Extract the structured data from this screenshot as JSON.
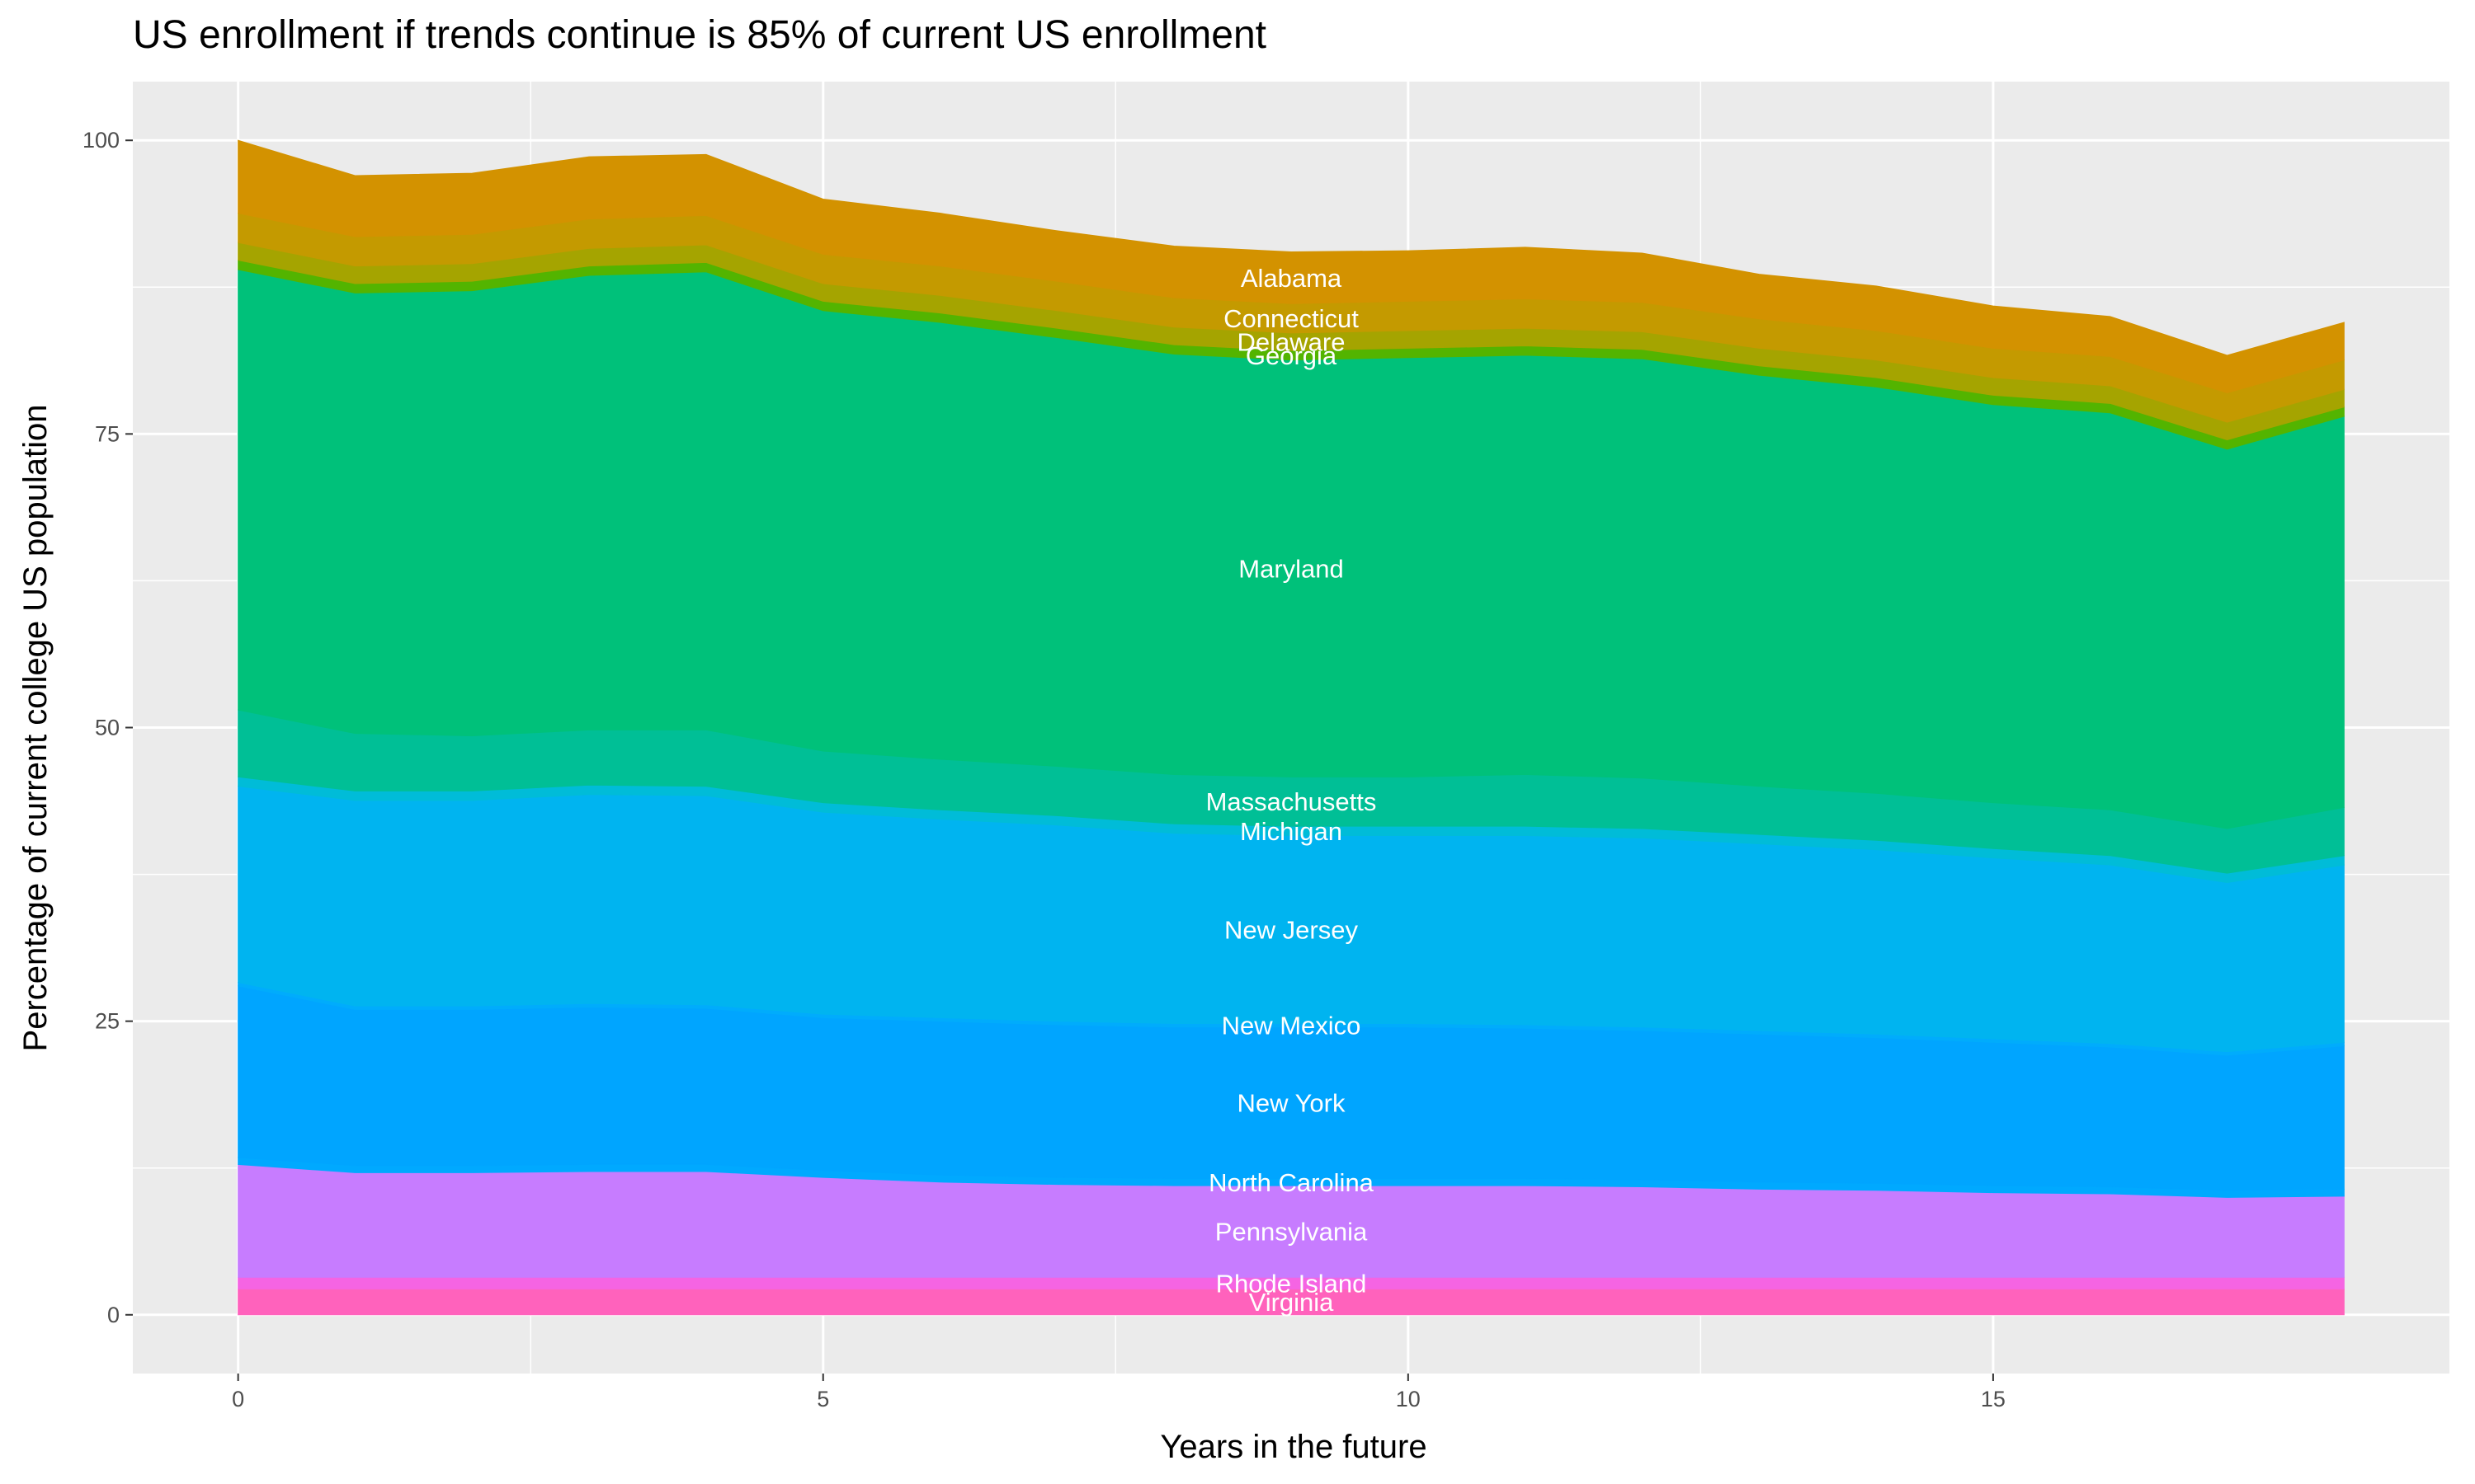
{
  "chart_data": {
    "type": "area",
    "stacked": true,
    "title": "US enrollment if trends continue is 85% of current US enrollment",
    "x_label": "Years in the future",
    "y_label": "Percentage of current college US population",
    "x": [
      0,
      1,
      2,
      3,
      4,
      5,
      6,
      7,
      8,
      9,
      10,
      11,
      12,
      13,
      14,
      15,
      16,
      17,
      18
    ],
    "xlim": [
      -0.9,
      18.9
    ],
    "xticks": [
      0,
      5,
      10,
      15
    ],
    "ylim": [
      -5,
      105
    ],
    "yticks": [
      0,
      25,
      50,
      75,
      100
    ],
    "grid": true,
    "series": [
      {
        "name": "Virginia",
        "color": "#FF62BC",
        "values": [
          2.2,
          2.2,
          2.2,
          2.2,
          2.2,
          2.2,
          2.2,
          2.2,
          2.2,
          2.2,
          2.2,
          2.2,
          2.2,
          2.2,
          2.2,
          2.2,
          2.2,
          2.2,
          2.2
        ]
      },
      {
        "name": "Rhode Island",
        "color": "#F564E3",
        "values": [
          1.0,
          1.0,
          1.0,
          1.0,
          1.0,
          1.0,
          1.0,
          1.0,
          1.0,
          1.0,
          1.0,
          1.0,
          1.0,
          1.0,
          1.0,
          1.0,
          1.0,
          1.0,
          1.0
        ]
      },
      {
        "name": "Pennsylvania",
        "color": "#C77CFF",
        "values": [
          9.6,
          8.9,
          8.9,
          9.0,
          9.0,
          8.5,
          8.1,
          7.9,
          7.8,
          7.8,
          7.8,
          7.8,
          7.7,
          7.5,
          7.4,
          7.2,
          7.1,
          6.8,
          6.9
        ]
      },
      {
        "name": "North Carolina",
        "color": "#00A9FF",
        "values": [
          0.6,
          0.6,
          0.6,
          0.6,
          0.6,
          0.6,
          0.6,
          0.6,
          0.6,
          0.6,
          0.6,
          0.6,
          0.6,
          0.6,
          0.6,
          0.6,
          0.6,
          0.6,
          0.6
        ]
      },
      {
        "name": "New York",
        "color": "#00A5FF",
        "values": [
          14.6,
          13.3,
          13.3,
          13.4,
          13.3,
          13.0,
          13.1,
          13.0,
          12.9,
          12.9,
          12.9,
          12.8,
          12.7,
          12.6,
          12.4,
          12.2,
          11.9,
          11.5,
          12.2
        ]
      },
      {
        "name": "New Mexico",
        "color": "#00ACFC",
        "values": [
          0.3,
          0.3,
          0.3,
          0.3,
          0.3,
          0.3,
          0.3,
          0.3,
          0.3,
          0.3,
          0.3,
          0.3,
          0.3,
          0.3,
          0.3,
          0.3,
          0.3,
          0.3,
          0.3
        ]
      },
      {
        "name": "New Jersey",
        "color": "#00B4F0",
        "values": [
          16.7,
          17.5,
          17.5,
          17.8,
          17.8,
          17.2,
          16.9,
          16.7,
          16.2,
          16.0,
          16.0,
          16.1,
          16.1,
          15.9,
          15.7,
          15.4,
          15.2,
          14.4,
          15.1
        ]
      },
      {
        "name": "Michigan",
        "color": "#00BCD8",
        "values": [
          0.8,
          0.8,
          0.8,
          0.8,
          0.8,
          0.8,
          0.8,
          0.8,
          0.8,
          0.8,
          0.8,
          0.8,
          0.8,
          0.8,
          0.8,
          0.8,
          0.8,
          0.8,
          0.8
        ]
      },
      {
        "name": "Massachusetts",
        "color": "#00BF96",
        "values": [
          5.7,
          4.9,
          4.7,
          4.7,
          4.8,
          4.4,
          4.3,
          4.2,
          4.2,
          4.2,
          4.2,
          4.4,
          4.3,
          4.1,
          4.0,
          3.9,
          3.9,
          3.8,
          4.1
        ]
      },
      {
        "name": "Maryland",
        "color": "#00C17A",
        "values": [
          37.5,
          37.5,
          37.9,
          38.7,
          39.0,
          37.5,
          37.2,
          36.5,
          35.8,
          35.5,
          35.7,
          35.7,
          35.7,
          35.0,
          34.6,
          33.9,
          33.8,
          32.3,
          33.3
        ]
      },
      {
        "name": "Georgia",
        "color": "#53B400",
        "values": [
          0.8,
          0.8,
          0.8,
          0.8,
          0.8,
          0.8,
          0.8,
          0.8,
          0.8,
          0.8,
          0.8,
          0.8,
          0.8,
          0.8,
          0.8,
          0.8,
          0.8,
          0.8,
          0.8
        ]
      },
      {
        "name": "Delaware",
        "color": "#A5A400",
        "values": [
          1.5,
          1.5,
          1.5,
          1.5,
          1.5,
          1.5,
          1.5,
          1.5,
          1.5,
          1.5,
          1.5,
          1.5,
          1.5,
          1.5,
          1.5,
          1.5,
          1.5,
          1.5,
          1.5
        ]
      },
      {
        "name": "Connecticut",
        "color": "#C49A00",
        "values": [
          2.5,
          2.5,
          2.5,
          2.5,
          2.5,
          2.5,
          2.5,
          2.5,
          2.5,
          2.5,
          2.5,
          2.5,
          2.5,
          2.5,
          2.5,
          2.5,
          2.5,
          2.5,
          2.5
        ]
      },
      {
        "name": "Alabama",
        "color": "#D39200",
        "values": [
          6.2,
          5.2,
          5.2,
          5.3,
          5.2,
          4.7,
          4.5,
          4.3,
          4.4,
          4.4,
          4.3,
          4.4,
          4.2,
          3.8,
          3.8,
          3.6,
          3.4,
          3.2,
          3.2
        ]
      }
    ]
  }
}
